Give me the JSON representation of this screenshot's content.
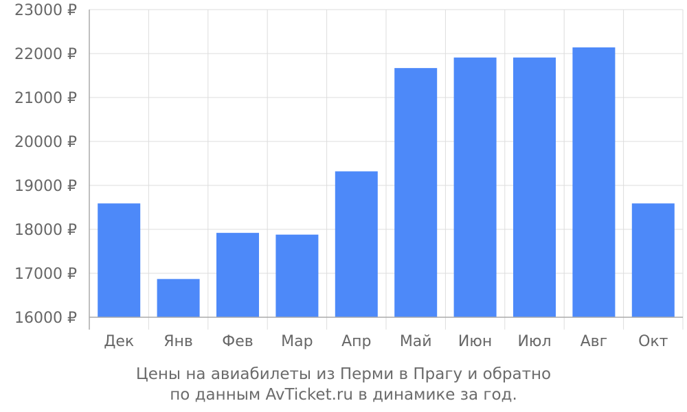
{
  "chart_data": {
    "type": "bar",
    "title": "",
    "xlabel": "",
    "ylabel": "",
    "categories": [
      "Дек",
      "Янв",
      "Фев",
      "Мар",
      "Апр",
      "Май",
      "Июн",
      "Июл",
      "Авг",
      "Окт"
    ],
    "values": [
      18590,
      16870,
      17920,
      17880,
      19320,
      21670,
      21910,
      21910,
      22140,
      18590
    ],
    "ylim": [
      16000,
      23000
    ],
    "yticks": [
      16000,
      17000,
      18000,
      19000,
      20000,
      21000,
      22000,
      23000
    ],
    "ytick_labels": [
      "16000 ₽",
      "17000 ₽",
      "18000 ₽",
      "19000 ₽",
      "20000 ₽",
      "21000 ₽",
      "22000 ₽",
      "23000 ₽"
    ],
    "grid": true,
    "legend": "none",
    "bar_color": "#4d89f9",
    "grid_color": "#dddddd",
    "axis_color": "#aaaaaa",
    "text_color": "#666666"
  },
  "caption": {
    "line1": "Цены на авиабилеты из Перми в Прагу и обратно",
    "line2": "по данным AvTicket.ru в динамике за год."
  }
}
